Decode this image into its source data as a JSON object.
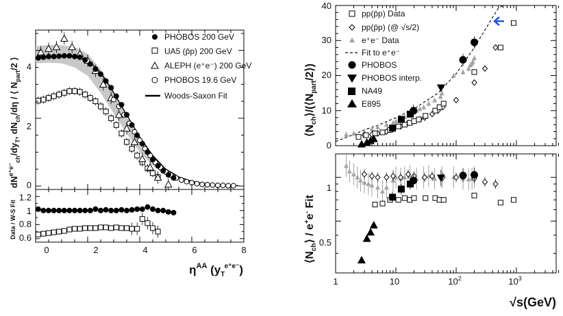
{
  "chart_data": [
    {
      "type": "scatter",
      "panel": "left-top",
      "xlabel": "η^AA (y_T^e+e-)",
      "ylabel": "dN_ch^e+e-/dy_T , dN_ch/dη / ⟨N_part/2⟩",
      "xlim": [
        0,
        8
      ],
      "ylim": [
        -0.1,
        4.6
      ],
      "x_ticks": [
        "0",
        "2",
        "4",
        "6",
        "8"
      ],
      "y_ticks": [
        "0",
        "2",
        "4"
      ],
      "band": {
        "x": [
          0,
          0.5,
          1.0,
          1.5,
          2.0,
          2.5,
          3.0,
          3.5,
          4.0,
          4.5,
          5.0,
          5.4
        ],
        "lo": [
          3.62,
          3.64,
          3.62,
          3.5,
          3.25,
          2.75,
          2.15,
          1.55,
          1.0,
          0.6,
          0.32,
          0.18
        ],
        "hi": [
          4.12,
          4.16,
          4.15,
          4.1,
          3.9,
          3.45,
          2.8,
          2.05,
          1.38,
          0.88,
          0.52,
          0.35
        ]
      },
      "legend": {
        "entries": [
          {
            "label": "PHOBOS 200 GeV",
            "marker": "circle-filled"
          },
          {
            "label": "UA5 (p̄p) 200 GeV",
            "marker": "square-open"
          },
          {
            "label": "ALEPH (e⁺e⁻) 200 GeV",
            "marker": "triangle-open"
          },
          {
            "label": "PHOBOS 19.6 GeV",
            "marker": "circle-open"
          },
          {
            "label": "Woods-Saxon Fit",
            "marker": "line"
          }
        ]
      },
      "series": [
        {
          "name": "PHOBOS 200 GeV",
          "marker": "circle-filled",
          "x": [
            0.1,
            0.3,
            0.5,
            0.7,
            0.9,
            1.1,
            1.3,
            1.5,
            1.7,
            1.9,
            2.1,
            2.3,
            2.5,
            2.7,
            2.9,
            3.1,
            3.3,
            3.5,
            3.7,
            3.9,
            4.1,
            4.3,
            4.5,
            4.7,
            4.9,
            5.1,
            5.3
          ],
          "y": [
            3.78,
            3.8,
            3.82,
            3.82,
            3.83,
            3.84,
            3.84,
            3.82,
            3.8,
            3.72,
            3.6,
            3.45,
            3.3,
            3.1,
            2.9,
            2.65,
            2.4,
            2.1,
            1.8,
            1.5,
            1.25,
            1.0,
            0.78,
            0.6,
            0.45,
            0.33,
            0.24
          ]
        },
        {
          "name": "UA5 (p̄p) 200 GeV",
          "marker": "square-open",
          "x": [
            0.1,
            0.3,
            0.5,
            0.7,
            0.9,
            1.1,
            1.3,
            1.5,
            1.7,
            1.9,
            2.1,
            2.3,
            2.5,
            2.7,
            2.9,
            3.1,
            3.3,
            3.5,
            3.7,
            3.9,
            4.1,
            4.3,
            4.5,
            4.7
          ],
          "y": [
            2.52,
            2.55,
            2.6,
            2.65,
            2.7,
            2.75,
            2.8,
            2.8,
            2.78,
            2.7,
            2.6,
            2.5,
            2.35,
            2.2,
            2.0,
            1.8,
            1.55,
            1.3,
            1.1,
            0.9,
            0.7,
            0.52,
            0.38,
            0.27
          ]
        },
        {
          "name": "ALEPH (e⁺e⁻) 200 GeV",
          "marker": "triangle-open",
          "x": [
            0.2,
            0.5,
            0.8,
            1.1,
            1.4,
            1.7,
            2.0,
            2.3,
            2.6,
            2.9,
            3.2,
            3.5,
            3.8,
            4.1,
            4.4,
            4.7,
            5.1
          ],
          "y": [
            3.95,
            4.05,
            4.1,
            4.35,
            4.1,
            3.9,
            3.7,
            3.4,
            3.0,
            2.6,
            2.1,
            1.7,
            1.3,
            0.8,
            0.55,
            0.25,
            0.05
          ]
        },
        {
          "name": "PHOBOS 19.6 GeV",
          "marker": "circle-open",
          "x": [
            3.0,
            3.2,
            3.4,
            3.6,
            3.8,
            4.0,
            4.2,
            4.4,
            4.6,
            4.8,
            5.0,
            5.2,
            5.4,
            5.6,
            5.8,
            6.0,
            6.2,
            6.4,
            6.6,
            6.8,
            7.0,
            7.2,
            7.4,
            7.6
          ],
          "y": [
            2.55,
            2.35,
            2.1,
            1.85,
            1.6,
            1.35,
            1.1,
            0.9,
            0.7,
            0.55,
            0.42,
            0.32,
            0.24,
            0.18,
            0.13,
            0.1,
            0.07,
            0.05,
            0.04,
            0.03,
            0.02,
            0.02,
            0.01,
            0.01
          ]
        },
        {
          "name": "Woods-Saxon Fit",
          "marker": "line",
          "x": [
            0,
            0.5,
            1.0,
            1.5,
            2.0,
            2.5,
            3.0,
            3.5,
            4.0,
            4.5,
            5.0,
            5.5,
            6.0,
            6.5,
            7.0,
            7.5,
            7.8
          ],
          "y": [
            3.8,
            3.82,
            3.84,
            3.82,
            3.72,
            3.35,
            2.75,
            2.1,
            1.45,
            0.9,
            0.5,
            0.27,
            0.14,
            0.07,
            0.03,
            0.015,
            0.01
          ]
        }
      ]
    },
    {
      "type": "scatter",
      "panel": "left-bottom",
      "ylabel": "Data / W-S Fit",
      "xlim": [
        0,
        8
      ],
      "ylim": [
        0.55,
        1.3
      ],
      "y_ticks": [
        "0.6",
        "0.8",
        "1",
        "1.2"
      ],
      "series": [
        {
          "name": "PHOBOS 200 GeV ratio",
          "marker": "circle-filled",
          "x": [
            0.1,
            0.3,
            0.5,
            0.7,
            0.9,
            1.1,
            1.3,
            1.5,
            1.7,
            1.9,
            2.1,
            2.3,
            2.5,
            2.7,
            2.9,
            3.1,
            3.3,
            3.5,
            3.7,
            3.9,
            4.1,
            4.3,
            4.5,
            4.7,
            4.9,
            5.1,
            5.3
          ],
          "y": [
            1.02,
            1.0,
            1.0,
            1.0,
            1.0,
            1.0,
            1.0,
            1.0,
            1.0,
            1.0,
            1.0,
            1.02,
            1.0,
            1.01,
            1.0,
            1.0,
            1.01,
            1.0,
            1.01,
            1.02,
            1.02,
            1.05,
            1.02,
            1.0,
            1.0,
            0.98,
            0.97
          ]
        },
        {
          "name": "UA5 ratio",
          "marker": "square-open",
          "x": [
            0.1,
            0.3,
            0.5,
            0.7,
            0.9,
            1.1,
            1.3,
            1.5,
            1.7,
            1.9,
            2.1,
            2.3,
            2.5,
            2.7,
            2.9,
            3.1,
            3.3,
            3.5,
            3.7,
            3.9,
            4.1,
            4.3,
            4.5,
            4.7
          ],
          "y": [
            0.66,
            0.67,
            0.68,
            0.69,
            0.7,
            0.71,
            0.73,
            0.74,
            0.74,
            0.75,
            0.75,
            0.75,
            0.76,
            0.76,
            0.75,
            0.76,
            0.75,
            0.75,
            0.74,
            0.74,
            0.88,
            0.82,
            0.75,
            0.7
          ]
        }
      ]
    },
    {
      "type": "scatter",
      "panel": "right-top",
      "xscale": "log",
      "ylabel": "⟨N_ch⟩/(⟨N_part/2⟩)",
      "xlim": [
        1,
        5000
      ],
      "ylim": [
        0,
        40
      ],
      "y_ticks": [
        "0",
        "10",
        "20",
        "30",
        "40"
      ],
      "legend": {
        "entries": [
          {
            "label": "pp(p̄p) Data",
            "marker": "square-open"
          },
          {
            "label": "pp(p̄p) (@ √s/2)",
            "marker": "diamond-open"
          },
          {
            "label": "e⁺e⁻ Data",
            "marker": "triangle-gray"
          },
          {
            "label": "Fit to e⁺e⁻",
            "marker": "dashed-line"
          },
          {
            "label": "PHOBOS",
            "marker": "circle-filled"
          },
          {
            "label": "PHOBOS interp.",
            "marker": "triangle-down-filled"
          },
          {
            "label": "NA49",
            "marker": "square-filled"
          },
          {
            "label": "E895",
            "marker": "triangle-up-filled"
          }
        ]
      },
      "series": [
        {
          "name": "pp(p̄p) Data",
          "marker": "square-open",
          "x": [
            2.4,
            3.2,
            4.5,
            6,
            8,
            11,
            14,
            17,
            20,
            24,
            31,
            45,
            53,
            62,
            200,
            546,
            900
          ],
          "y": [
            2.5,
            3,
            3.5,
            3.8,
            4.5,
            5.5,
            6,
            6.5,
            7,
            7.5,
            8.5,
            10,
            11,
            12,
            21,
            28,
            35
          ]
        },
        {
          "name": "pp(p̄p) (@ √s/2)",
          "marker": "diamond-open",
          "x": [
            3,
            4,
            5,
            7,
            9,
            12,
            16,
            20,
            25,
            30,
            40,
            50,
            60,
            100,
            200,
            300,
            450
          ],
          "y": [
            3,
            3.2,
            3.5,
            4,
            4.8,
            5.5,
            6.5,
            7,
            7.5,
            8,
            9,
            10,
            11,
            13,
            18,
            22,
            28
          ]
        },
        {
          "name": "e⁺e⁻ Data",
          "marker": "triangle-gray",
          "x": [
            1.5,
            2,
            3,
            4,
            5,
            7,
            9,
            10,
            12,
            14,
            17,
            20,
            22,
            25,
            29,
            35,
            44,
            55,
            58,
            91,
            130,
            161,
            172,
            183,
            189,
            200
          ],
          "y": [
            3.2,
            3.5,
            4,
            4.8,
            5.3,
            6,
            6.5,
            7,
            7.5,
            8.2,
            9,
            9.5,
            10,
            10.5,
            11,
            12,
            13,
            14,
            15,
            20,
            21,
            22,
            23,
            23.5,
            24,
            25
          ]
        },
        {
          "name": "Fit to e⁺e⁻",
          "marker": "dashed-line",
          "x": [
            1,
            2,
            3,
            5,
            10,
            20,
            50,
            100,
            200,
            300,
            400,
            500,
            600
          ],
          "y": [
            1.2,
            3.2,
            4.5,
            5.8,
            8,
            10.5,
            15,
            20.5,
            28,
            33,
            36.5,
            39.2,
            41
          ]
        },
        {
          "name": "PHOBOS",
          "marker": "circle-filled",
          "x": [
            19.6,
            130,
            200
          ],
          "y": [
            10,
            24.5,
            29.5
          ]
        },
        {
          "name": "PHOBOS interp.",
          "marker": "triangle-down-filled",
          "x": [
            56
          ],
          "y": [
            16.5
          ]
        },
        {
          "name": "NA49",
          "marker": "square-filled",
          "x": [
            8.8,
            12.3,
            17.3
          ],
          "y": [
            5,
            7.5,
            9
          ]
        },
        {
          "name": "E895",
          "marker": "triangle-up-filled",
          "x": [
            2.7,
            3.3,
            3.8,
            4.3
          ],
          "y": [
            0.5,
            1,
            1.5,
            2
          ]
        }
      ]
    },
    {
      "type": "scatter",
      "panel": "right-bottom",
      "xscale": "log",
      "yscale": "log",
      "xlabel": "√s(GeV)",
      "ylabel": "⟨N_ch⟩ / e⁺e⁻ Fit",
      "xlim": [
        1,
        5000
      ],
      "ylim": [
        0.22,
        1.45
      ],
      "x_ticks": [
        "1",
        "10",
        "10²",
        "10³"
      ],
      "y_ticks": [
        "0.5",
        "1"
      ],
      "series": [
        {
          "name": "pp(p̄p) Data",
          "marker": "square-open",
          "x": [
            4.5,
            6,
            8,
            11,
            14,
            17,
            20,
            31,
            45,
            53,
            62,
            200,
            546,
            900
          ],
          "y": [
            0.65,
            0.66,
            0.7,
            0.7,
            0.72,
            0.7,
            0.72,
            0.72,
            0.72,
            0.7,
            0.7,
            0.75,
            0.67,
            0.7
          ]
        },
        {
          "name": "pp(p̄p) (@ √s/2)",
          "marker": "diamond-open",
          "x": [
            3,
            4,
            5,
            7,
            9,
            12,
            16,
            20,
            30,
            40,
            60,
            100,
            200,
            300,
            450
          ],
          "y": [
            1.05,
            1.02,
            1.0,
            1.0,
            1.02,
            1.0,
            1.05,
            1.02,
            1.0,
            1.02,
            1.0,
            1.0,
            0.98,
            0.93,
            0.9
          ]
        },
        {
          "name": "e⁺e⁻ Data",
          "marker": "triangle-gray",
          "x": [
            1.5,
            1.7,
            2,
            2.3,
            2.6,
            3,
            3.5,
            4,
            5,
            6,
            7,
            9,
            10,
            12,
            14,
            17,
            22,
            29,
            35,
            44,
            58,
            91,
            130,
            161,
            183,
            200
          ],
          "y": [
            1.2,
            1.1,
            1.05,
            1.0,
            0.95,
            0.92,
            0.9,
            0.88,
            0.85,
            0.8,
            0.85,
            0.95,
            1.0,
            0.98,
            1.0,
            1.02,
            0.98,
            1.0,
            1.02,
            0.98,
            1.0,
            1.0,
            0.98,
            0.97,
            0.98,
            1.0
          ]
        },
        {
          "name": "PHOBOS",
          "marker": "circle-filled",
          "x": [
            19.6,
            130,
            200
          ],
          "y": [
            0.95,
            1.03,
            1.04
          ]
        },
        {
          "name": "PHOBOS interp.",
          "marker": "triangle-down-filled",
          "x": [
            56
          ],
          "y": [
            0.99
          ]
        },
        {
          "name": "NA49",
          "marker": "square-filled",
          "x": [
            8.8,
            12.3,
            17.3
          ],
          "y": [
            0.73,
            0.83,
            0.9
          ]
        },
        {
          "name": "E895",
          "marker": "triangle-up-filled",
          "x": [
            2.7,
            3.3,
            3.8,
            4.3
          ],
          "y": [
            0.27,
            0.38,
            0.42,
            0.47
          ]
        }
      ]
    }
  ]
}
